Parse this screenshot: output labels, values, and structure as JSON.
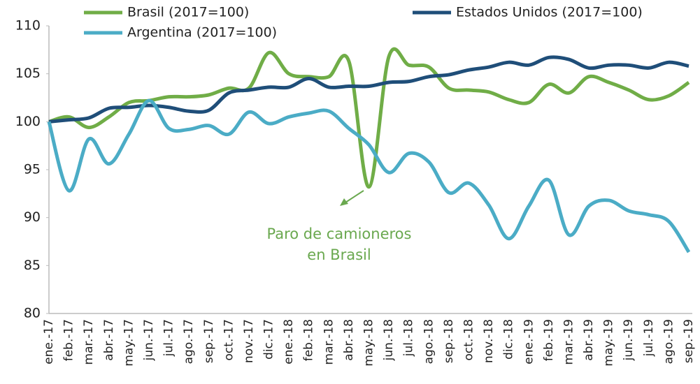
{
  "chart_data": {
    "type": "line",
    "categories": [
      "ene.-17",
      "feb.-17",
      "mar.-17",
      "abr.-17",
      "may.-17",
      "jun.-17",
      "jul.-17",
      "ago.-17",
      "sep.-17",
      "oct.-17",
      "nov.-17",
      "dic.-17",
      "ene.-18",
      "feb.-18",
      "mar.-18",
      "abr.-18",
      "may.-18",
      "jun.-18",
      "jul.-18",
      "ago.-18",
      "sep.-18",
      "oct.-18",
      "nov.-18",
      "dic.-18",
      "ene.-19",
      "feb.-19",
      "mar.-19",
      "abr.-19",
      "may.-19",
      "jun.-19",
      "jul.-19",
      "ago.-19",
      "sep.-19"
    ],
    "series": [
      {
        "name": "Brasil (2017=100)",
        "color": "#70ad47",
        "values": [
          100,
          100.5,
          99.4,
          100.5,
          102,
          102.2,
          102.6,
          102.6,
          102.8,
          103.5,
          103.5,
          107.2,
          105,
          104.7,
          104.7,
          106.3,
          93.2,
          106.8,
          105.9,
          105.7,
          103.5,
          103.3,
          103.1,
          102.3,
          102,
          103.9,
          103,
          104.7,
          104.1,
          103.3,
          102.3,
          102.7,
          104.1
        ]
      },
      {
        "name": "Estados Unidos (2017=100)",
        "color": "#1f4e79",
        "values": [
          100,
          100.2,
          100.4,
          101.4,
          101.5,
          101.7,
          101.5,
          101.1,
          101.2,
          103,
          103.3,
          103.6,
          103.6,
          104.5,
          103.6,
          103.7,
          103.7,
          104.1,
          104.2,
          104.7,
          104.9,
          105.4,
          105.7,
          106.2,
          105.9,
          106.7,
          106.5,
          105.6,
          105.9,
          105.9,
          105.6,
          106.2,
          105.8
        ]
      },
      {
        "name": "Argentina (2017=100)",
        "color": "#4bacc6",
        "values": [
          100,
          92.8,
          98.2,
          95.6,
          98.7,
          102.2,
          99.3,
          99.2,
          99.6,
          98.7,
          101,
          99.8,
          100.5,
          100.9,
          101.1,
          99.3,
          97.6,
          94.7,
          96.7,
          95.8,
          92.6,
          93.6,
          91.3,
          87.8,
          91.2,
          93.9,
          88.2,
          91.2,
          91.8,
          90.7,
          90.3,
          89.6,
          86.4
        ]
      }
    ],
    "ylim": [
      80,
      110
    ],
    "yticks": [
      80,
      85,
      90,
      95,
      100,
      105,
      110
    ],
    "annotation": [
      "Paro de camioneros",
      "en Brasil"
    ]
  }
}
